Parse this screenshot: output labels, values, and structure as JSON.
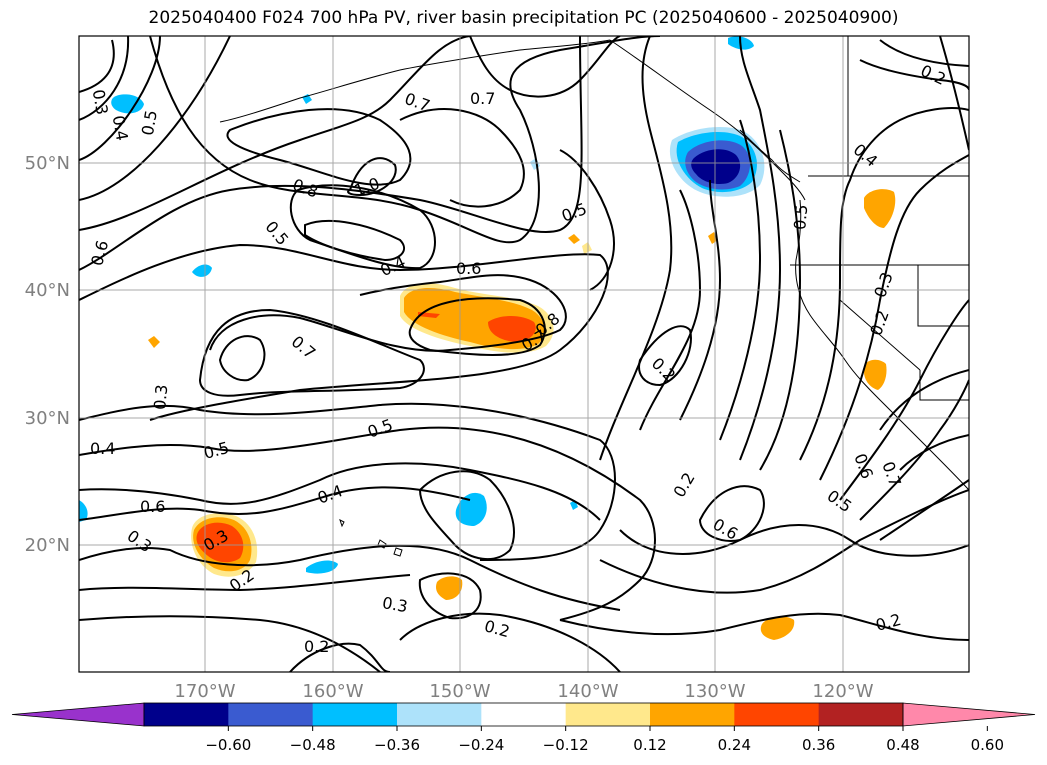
{
  "title": "2025040400 F024 700 hPa PV, river basin precipitation PC (2025040600 - 2025040900)",
  "lat_labels": [
    "50°N",
    "40°N",
    "30°N",
    "20°N"
  ],
  "lon_labels": [
    "170°W",
    "160°W",
    "150°W",
    "140°W",
    "130°W",
    "120°W"
  ],
  "contour_labels": [
    "0.3",
    "0.4",
    "0.5",
    "0.7",
    "0.7",
    "1.0",
    "0.8",
    "0.5",
    "0.4",
    "0.6",
    "0.6",
    "0.5",
    "0.7",
    "0.8",
    "0.7",
    "0.3",
    "0.5",
    "0.4",
    "0.4",
    "0.5",
    "0.6",
    "0.3",
    "0.3",
    "0.2",
    "0.2",
    "0.3",
    "0.2",
    "0.2",
    "0.6",
    "0.5",
    "0.2",
    "0.2",
    "0.5",
    "0.4",
    "0.2",
    "0.3",
    "0.2",
    "0.6",
    "0.7"
  ],
  "colorbar": {
    "colors": [
      "#9932CC",
      "#00008B",
      "#3A5BD0",
      "#00BFFF",
      "#ADE2FA",
      "#FFFFFF",
      "#FFE88C",
      "#FFA500",
      "#FF4500",
      "#B22222",
      "#FF88AA"
    ],
    "tick_labels": [
      "−0.60",
      "−0.48",
      "−0.36",
      "−0.24",
      "−0.12",
      "0.12",
      "0.24",
      "0.36",
      "0.48",
      "0.60"
    ]
  }
}
